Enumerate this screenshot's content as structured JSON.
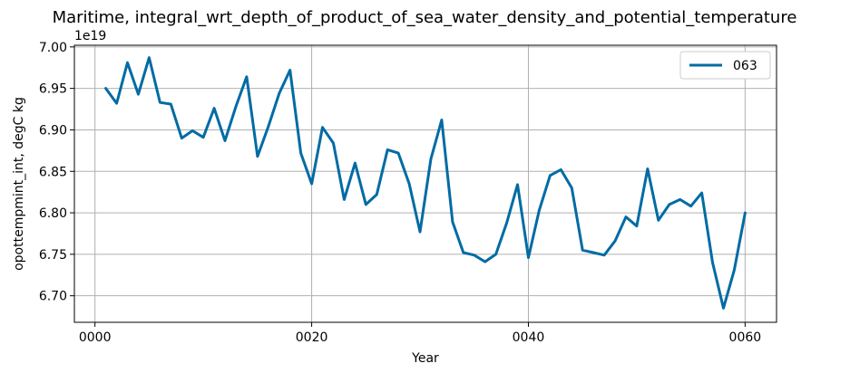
{
  "chart_data": {
    "type": "line",
    "title": "Maritime, integral_wrt_depth_of_product_of_sea_water_density_and_potential_temperature",
    "xlabel": "Year",
    "ylabel": "opottempmint_int, degC kg",
    "y_offset_label": "1e19",
    "xlim": [
      -1.9,
      62.9
    ],
    "ylim": [
      6.668,
      7.002
    ],
    "x_ticks": [
      0,
      20,
      40,
      60
    ],
    "x_tick_labels": [
      "0000",
      "0020",
      "0040",
      "0060"
    ],
    "y_ticks": [
      6.7,
      6.75,
      6.8,
      6.85,
      6.9,
      6.95,
      7.0
    ],
    "y_tick_labels": [
      "6.70",
      "6.75",
      "6.80",
      "6.85",
      "6.90",
      "6.95",
      "7.00"
    ],
    "grid": true,
    "legend_position": "top-right",
    "series": [
      {
        "name": "063",
        "color": "#006ba4",
        "x": [
          1,
          2,
          3,
          4,
          5,
          6,
          7,
          8,
          9,
          10,
          11,
          12,
          13,
          14,
          15,
          16,
          17,
          18,
          19,
          20,
          21,
          22,
          23,
          24,
          25,
          26,
          27,
          28,
          29,
          30,
          31,
          32,
          33,
          34,
          35,
          36,
          37,
          38,
          39,
          40,
          41,
          42,
          43,
          44,
          45,
          46,
          47,
          48,
          49,
          50,
          51,
          52,
          53,
          54,
          55,
          56,
          57,
          58,
          59,
          60
        ],
        "values": [
          6.95,
          6.932,
          6.981,
          6.943,
          6.987,
          6.933,
          6.931,
          6.89,
          6.899,
          6.891,
          6.926,
          6.887,
          6.928,
          6.964,
          6.868,
          6.904,
          6.944,
          6.972,
          6.872,
          6.835,
          6.903,
          6.884,
          6.816,
          6.86,
          6.81,
          6.822,
          6.876,
          6.872,
          6.835,
          6.777,
          6.865,
          6.912,
          6.789,
          6.752,
          6.749,
          6.741,
          6.75,
          6.788,
          6.834,
          6.746,
          6.803,
          6.845,
          6.852,
          6.83,
          6.755,
          6.752,
          6.749,
          6.766,
          6.795,
          6.784,
          6.853,
          6.791,
          6.81,
          6.816,
          6.808,
          6.824,
          6.74,
          6.685,
          6.731,
          6.8
        ]
      }
    ]
  }
}
